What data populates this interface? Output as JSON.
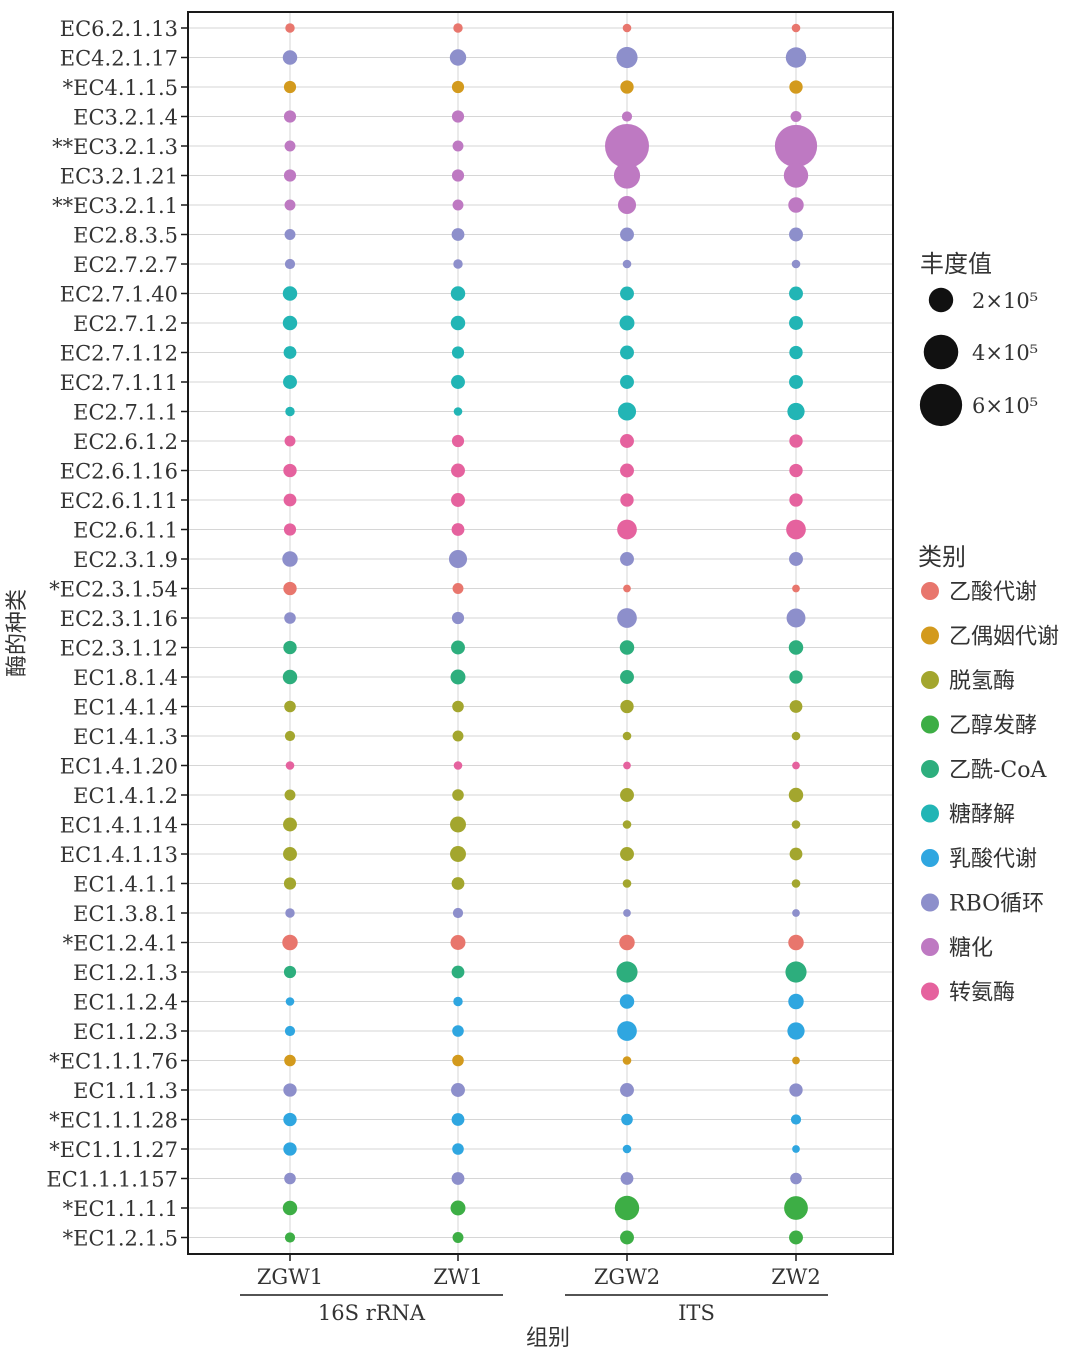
{
  "chart_data": {
    "type": "scatter",
    "xlabel": "组别",
    "ylabel": "酶的种类",
    "x": [
      "ZGW1",
      "ZW1",
      "ZGW2",
      "ZW2"
    ],
    "groups": [
      {
        "label": "16S rRNA",
        "members": [
          "ZGW1",
          "ZW1"
        ]
      },
      {
        "label": "ITS",
        "members": [
          "ZGW2",
          "ZW2"
        ]
      }
    ],
    "size_legend": {
      "title": "丰度值",
      "items": [
        {
          "label": "2×10⁵",
          "value": 200000
        },
        {
          "label": "4×10⁵",
          "value": 400000
        },
        {
          "label": "6×10⁵",
          "value": 600000
        }
      ]
    },
    "color_legend": {
      "title": "类别",
      "items": [
        {
          "label": "乙酸代谢",
          "color": "#E8766D"
        },
        {
          "label": "乙偶姻代谢",
          "color": "#D39A1D"
        },
        {
          "label": "脱氢酶",
          "color": "#A3A62E"
        },
        {
          "label": "乙醇发酵",
          "color": "#3DAE45"
        },
        {
          "label": "乙酰-CoA",
          "color": "#2DAE7D"
        },
        {
          "label": "糖酵解",
          "color": "#22B5B5"
        },
        {
          "label": "乳酸代谢",
          "color": "#2FA6E0"
        },
        {
          "label": "RBO循环",
          "color": "#8D8FCB"
        },
        {
          "label": "糖化",
          "color": "#BE79C2"
        },
        {
          "label": "转氨酶",
          "color": "#E5629E"
        }
      ]
    },
    "rows": [
      {
        "enzyme": "EC6.2.1.13",
        "category": "乙酸代谢",
        "values": [
          30000,
          30000,
          25000,
          25000
        ]
      },
      {
        "enzyme": "EC4.2.1.17",
        "category": "RBO循环",
        "values": [
          70000,
          90000,
          150000,
          140000
        ]
      },
      {
        "enzyme": "*EC4.1.1.5",
        "category": "乙偶姻代谢",
        "values": [
          50000,
          50000,
          60000,
          60000
        ]
      },
      {
        "enzyme": "EC3.2.1.4",
        "category": "糖化",
        "values": [
          50000,
          50000,
          35000,
          40000
        ]
      },
      {
        "enzyme": "**EC3.2.1.3",
        "category": "糖化",
        "values": [
          40000,
          40000,
          650000,
          600000
        ]
      },
      {
        "enzyme": "EC3.2.1.21",
        "category": "糖化",
        "values": [
          50000,
          50000,
          230000,
          200000
        ]
      },
      {
        "enzyme": "**EC3.2.1.1",
        "category": "糖化",
        "values": [
          40000,
          40000,
          110000,
          80000
        ]
      },
      {
        "enzyme": "EC2.8.3.5",
        "category": "RBO循环",
        "values": [
          40000,
          55000,
          65000,
          65000
        ]
      },
      {
        "enzyme": "EC2.7.2.7",
        "category": "RBO循环",
        "values": [
          35000,
          30000,
          25000,
          25000
        ]
      },
      {
        "enzyme": "EC2.7.1.40",
        "category": "糖酵解",
        "values": [
          70000,
          70000,
          65000,
          65000
        ]
      },
      {
        "enzyme": "EC2.7.1.2",
        "category": "糖酵解",
        "values": [
          70000,
          70000,
          75000,
          65000
        ]
      },
      {
        "enzyme": "EC2.7.1.12",
        "category": "糖酵解",
        "values": [
          55000,
          50000,
          65000,
          60000
        ]
      },
      {
        "enzyme": "EC2.7.1.11",
        "category": "糖酵解",
        "values": [
          65000,
          65000,
          65000,
          65000
        ]
      },
      {
        "enzyme": "EC2.7.1.1",
        "category": "糖酵解",
        "values": [
          30000,
          25000,
          110000,
          100000
        ]
      },
      {
        "enzyme": "EC2.6.1.2",
        "category": "转氨酶",
        "values": [
          40000,
          50000,
          65000,
          60000
        ]
      },
      {
        "enzyme": "EC2.6.1.16",
        "category": "转氨酶",
        "values": [
          60000,
          65000,
          65000,
          60000
        ]
      },
      {
        "enzyme": "EC2.6.1.11",
        "category": "转氨酶",
        "values": [
          55000,
          65000,
          60000,
          60000
        ]
      },
      {
        "enzyme": "EC2.6.1.1",
        "category": "转氨酶",
        "values": [
          50000,
          55000,
          130000,
          130000
        ]
      },
      {
        "enzyme": "EC2.3.1.9",
        "category": "RBO循环",
        "values": [
          80000,
          110000,
          65000,
          65000
        ]
      },
      {
        "enzyme": "*EC2.3.1.54",
        "category": "乙酸代谢",
        "values": [
          60000,
          40000,
          20000,
          20000
        ]
      },
      {
        "enzyme": "EC2.3.1.16",
        "category": "RBO循环",
        "values": [
          45000,
          50000,
          130000,
          120000
        ]
      },
      {
        "enzyme": "EC2.3.1.12",
        "category": "乙酰-CoA",
        "values": [
          60000,
          65000,
          70000,
          70000
        ]
      },
      {
        "enzyme": "EC1.8.1.4",
        "category": "乙酰-CoA",
        "values": [
          70000,
          75000,
          65000,
          60000
        ]
      },
      {
        "enzyme": "EC1.4.1.4",
        "category": "脱氢酶",
        "values": [
          45000,
          45000,
          60000,
          55000
        ]
      },
      {
        "enzyme": "EC1.4.1.3",
        "category": "脱氢酶",
        "values": [
          35000,
          40000,
          25000,
          25000
        ]
      },
      {
        "enzyme": "EC1.4.1.20",
        "category": "转氨酶",
        "values": [
          25000,
          25000,
          20000,
          20000
        ]
      },
      {
        "enzyme": "EC1.4.1.2",
        "category": "脱氢酶",
        "values": [
          40000,
          45000,
          65000,
          70000
        ]
      },
      {
        "enzyme": "EC1.4.1.14",
        "category": "脱氢酶",
        "values": [
          65000,
          85000,
          25000,
          25000
        ]
      },
      {
        "enzyme": "EC1.4.1.13",
        "category": "脱氢酶",
        "values": [
          65000,
          85000,
          65000,
          55000
        ]
      },
      {
        "enzyme": "EC1.4.1.1",
        "category": "脱氢酶",
        "values": [
          50000,
          55000,
          25000,
          25000
        ]
      },
      {
        "enzyme": "EC1.3.8.1",
        "category": "RBO循环",
        "values": [
          30000,
          35000,
          20000,
          20000
        ]
      },
      {
        "enzyme": "*EC1.2.4.1",
        "category": "乙酸代谢",
        "values": [
          80000,
          75000,
          80000,
          80000
        ]
      },
      {
        "enzyme": "EC1.2.1.3",
        "category": "乙酰-CoA",
        "values": [
          50000,
          55000,
          150000,
          150000
        ]
      },
      {
        "enzyme": "EC1.1.2.4",
        "category": "乳酸代谢",
        "values": [
          25000,
          30000,
          70000,
          80000
        ]
      },
      {
        "enzyme": "EC1.1.2.3",
        "category": "乳酸代谢",
        "values": [
          35000,
          45000,
          130000,
          100000
        ]
      },
      {
        "enzyme": "*EC1.1.1.76",
        "category": "乙偶姻代谢",
        "values": [
          45000,
          45000,
          25000,
          20000
        ]
      },
      {
        "enzyme": "EC1.1.1.3",
        "category": "RBO循环",
        "values": [
          60000,
          65000,
          65000,
          60000
        ]
      },
      {
        "enzyme": "*EC1.1.1.28",
        "category": "乳酸代谢",
        "values": [
          60000,
          55000,
          45000,
          35000
        ]
      },
      {
        "enzyme": "*EC1.1.1.27",
        "category": "乳酸代谢",
        "values": [
          60000,
          45000,
          25000,
          20000
        ]
      },
      {
        "enzyme": "EC1.1.1.157",
        "category": "RBO循环",
        "values": [
          45000,
          55000,
          55000,
          45000
        ]
      },
      {
        "enzyme": "*EC1.1.1.1",
        "category": "乙醇发酵",
        "values": [
          70000,
          75000,
          200000,
          190000
        ]
      },
      {
        "enzyme": "*EC1.2.1.5",
        "category": "乙醇发酵",
        "values": [
          35000,
          40000,
          65000,
          65000
        ]
      }
    ]
  }
}
